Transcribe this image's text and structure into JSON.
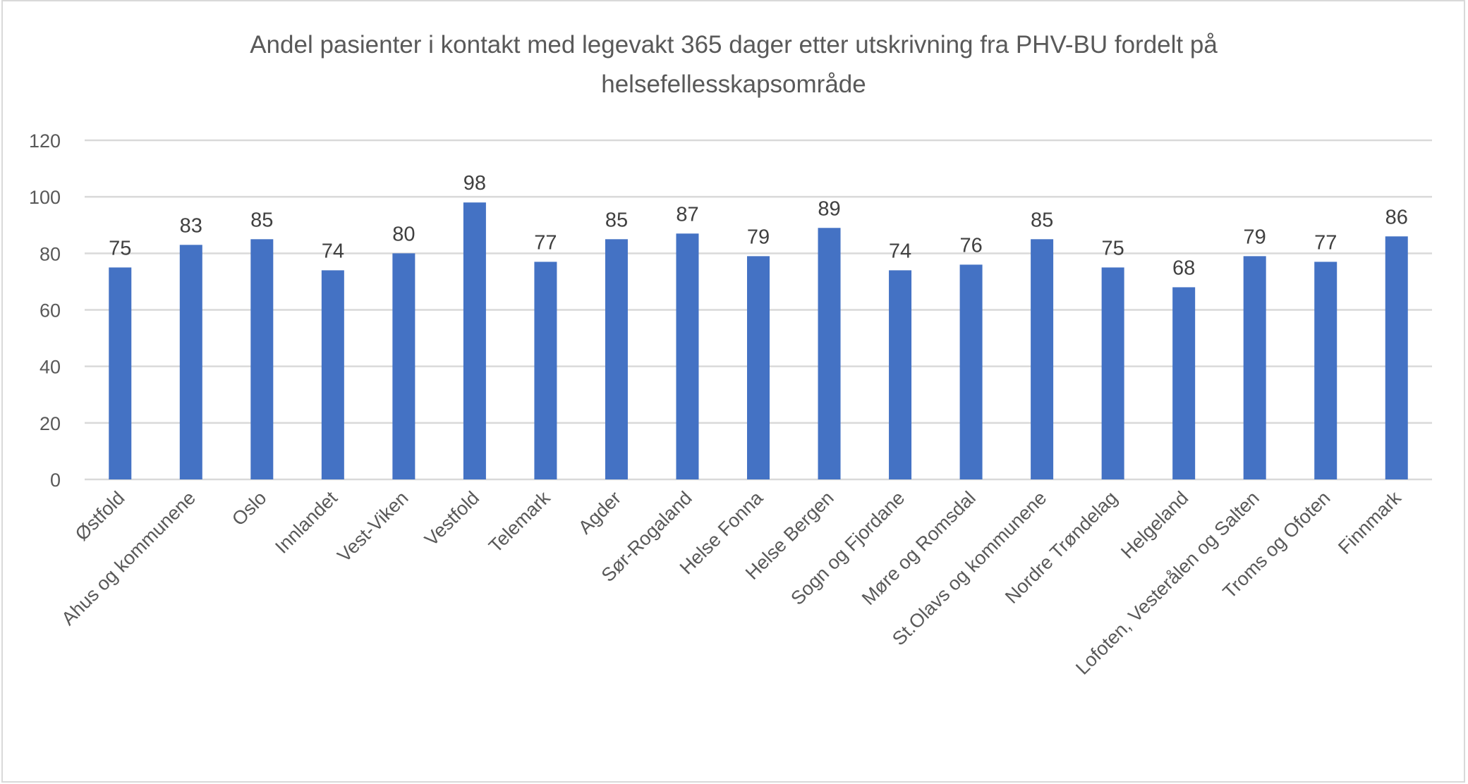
{
  "chart_data": {
    "type": "bar",
    "title": "Andel pasienter i kontakt med legevakt 365 dager etter utskrivning fra PHV-BU fordelt på helsefellesskapsområde",
    "title_lines": [
      "Andel pasienter i kontakt med legevakt 365 dager etter utskrivning fra PHV-BU fordelt på",
      "helsefellesskapsområde"
    ],
    "categories": [
      "Østfold",
      "Ahus og kommunene",
      "Oslo",
      "Innlandet",
      "Vest-Viken",
      "Vestfold",
      "Telemark",
      "Agder",
      "Sør-Rogaland",
      "Helse Fonna",
      "Helse Bergen",
      "Sogn og Fjordane",
      "Møre og Romsdal",
      "St.Olavs og kommunene",
      "Nordre Trøndelag",
      "Helgeland",
      "Lofoten, Vesterålen og Salten",
      "Troms og Ofoten",
      "Finnmark"
    ],
    "values": [
      75,
      83,
      85,
      74,
      80,
      98,
      77,
      85,
      87,
      79,
      89,
      74,
      76,
      85,
      75,
      68,
      79,
      77,
      86
    ],
    "ylim": [
      0,
      120
    ],
    "yticks": [
      0,
      20,
      40,
      60,
      80,
      100,
      120
    ],
    "xlabel": "",
    "ylabel": "",
    "grid": true,
    "legend": "none",
    "colors": {
      "bar": "#4472c4",
      "grid": "#d9d9d9",
      "text": "#595959",
      "data_label": "#404040"
    }
  }
}
